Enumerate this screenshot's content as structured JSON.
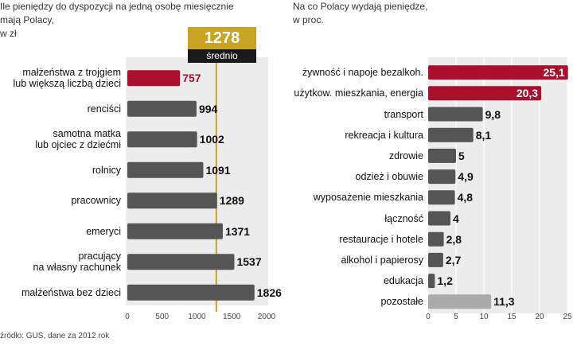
{
  "chart_data": [
    {
      "type": "bar",
      "orientation": "horizontal",
      "title": "Ile pieniędzy do dyspozycji na jedną osobę miesięcznie mają Polacy, w zł",
      "categories": [
        "małżeństwa z trojgiem lub większą liczbą dzieci",
        "renciści",
        "samotna matka lub ojciec z dziećmi",
        "rolnicy",
        "pracownicy",
        "emeryci",
        "pracujący na własny rachunek",
        "małżeństwa bez dzieci"
      ],
      "category_lines": [
        [
          "małżeństwa z trojgiem",
          "lub większą liczbą dzieci"
        ],
        [
          "renciści"
        ],
        [
          "samotna matka",
          "lub ojciec z dziećmi"
        ],
        [
          "rolnicy"
        ],
        [
          "pracownicy"
        ],
        [
          "emeryci"
        ],
        [
          "pracujący",
          "na własny rachunek"
        ],
        [
          "małżeństwa bez dzieci"
        ]
      ],
      "values": [
        757,
        994,
        1002,
        1091,
        1289,
        1371,
        1537,
        1826
      ],
      "value_labels": [
        "757",
        "994",
        "1002",
        "1091",
        "1289",
        "1371",
        "1537",
        "1826"
      ],
      "highlight_index": 0,
      "reference_line": {
        "value": 1278,
        "value_label": "1278",
        "label": "średnio"
      },
      "xlim": [
        0,
        2000
      ],
      "xticks": [
        0,
        500,
        1000,
        1500,
        2000
      ],
      "xtick_labels": [
        "0",
        "500",
        "1000",
        "1500",
        "2000"
      ],
      "grid": false
    },
    {
      "type": "bar",
      "orientation": "horizontal",
      "title": "Na co Polacy wydają pieniędze, w proc.",
      "categories": [
        "żywność i napoje bezalkoh.",
        "użytkow. mieszkania, energia",
        "transport",
        "rekreacja i kultura",
        "zdrowie",
        "odzież i obuwie",
        "wyposażenie mieszkania",
        "łączność",
        "restauracje i hotele",
        "alkohol i papierosy",
        "edukacja",
        "pozostałe"
      ],
      "values": [
        25.1,
        20.3,
        9.8,
        8.1,
        5,
        4.9,
        4.8,
        4,
        2.8,
        2.7,
        1.2,
        11.3
      ],
      "value_labels": [
        "25,1",
        "20,3",
        "9,8",
        "8,1",
        "5",
        "4,9",
        "4,8",
        "4",
        "2,8",
        "2,7",
        "1,2",
        "11,3"
      ],
      "highlight_indices": [
        0,
        1
      ],
      "other_index": 11,
      "xlim": [
        0,
        25
      ],
      "xticks": [
        0,
        5,
        10,
        15,
        20,
        25
      ],
      "xtick_labels": [
        "0",
        "5",
        "10",
        "15",
        "20",
        "25"
      ],
      "grid": true
    }
  ],
  "left_title_lines": [
    "Ile pieniędzy do dyspozycji na jedną osobę miesięcznie",
    "mają Polacy,",
    "w zł"
  ],
  "right_title_lines": [
    "Na co Polacy wydają pieniędze,",
    "w proc."
  ],
  "footer": "źródło: GUS, dane za 2012 rok",
  "colors": {
    "highlight": "#a8102e",
    "bar": "#555555",
    "other": "#aaaaaa",
    "panel": "#ececec",
    "reference": "#c9a323",
    "reference_label_bg": "#1a1a1a"
  }
}
